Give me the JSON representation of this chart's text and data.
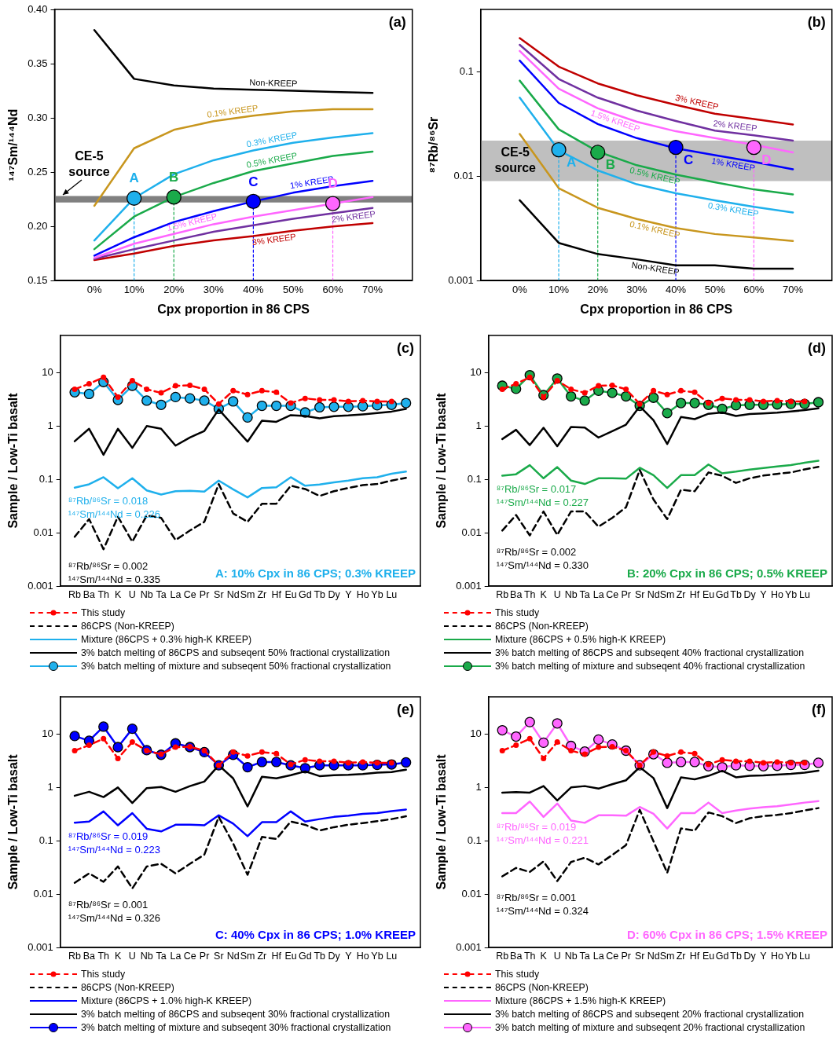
{
  "chart_data": [
    {
      "type": "line",
      "title": "(a)",
      "xlabel": "Cpx proportion in 86 CPS",
      "ylabel": "¹⁴⁷Sm/¹⁴⁴Nd",
      "x": [
        0,
        10,
        20,
        30,
        40,
        50,
        60,
        70
      ],
      "xlim": [
        -10,
        80
      ],
      "xticks": [
        {
          "value": 0,
          "label": "0%"
        },
        {
          "value": 10,
          "label": "10%"
        },
        {
          "value": 20,
          "label": "20%"
        },
        {
          "value": 30,
          "label": "30%"
        },
        {
          "value": 40,
          "label": "40%"
        },
        {
          "value": 50,
          "label": "50%"
        },
        {
          "value": 60,
          "label": "60%"
        },
        {
          "value": 70,
          "label": "70%"
        }
      ],
      "ylim": [
        0.15,
        0.4
      ],
      "yticks": [
        {
          "value": 0.15,
          "label": "0.15"
        },
        {
          "value": 0.2,
          "label": "0.20"
        },
        {
          "value": 0.25,
          "label": "0.25"
        },
        {
          "value": 0.3,
          "label": "0.30"
        },
        {
          "value": 0.35,
          "label": "0.35"
        },
        {
          "value": 0.4,
          "label": "0.40"
        }
      ],
      "bands": [
        {
          "axis": "y",
          "from": 0.222,
          "to": 0.228,
          "label": "CE-5 source",
          "color": "#808080"
        }
      ],
      "annotations": [
        {
          "text": "A",
          "x": 10,
          "y": 0.226
        },
        {
          "text": "B",
          "x": 20,
          "y": 0.227
        },
        {
          "text": "C",
          "x": 40,
          "y": 0.223
        },
        {
          "text": "D",
          "x": 60,
          "y": 0.221
        }
      ],
      "series": [
        {
          "name": "Non-KREEP",
          "color": "#000000",
          "values": [
            0.381,
            0.336,
            0.33,
            0.327,
            0.326,
            0.325,
            0.324,
            0.323
          ]
        },
        {
          "name": "0.1% KREEP",
          "color": "#c8961e",
          "values": [
            0.219,
            0.272,
            0.289,
            0.297,
            0.302,
            0.306,
            0.308,
            0.308
          ]
        },
        {
          "name": "0.3% KREEP",
          "color": "#1fb0ec",
          "values": [
            0.187,
            0.226,
            0.248,
            0.261,
            0.27,
            0.277,
            0.282,
            0.286
          ]
        },
        {
          "name": "0.5% KREEP",
          "color": "#1aaa4a",
          "values": [
            0.179,
            0.209,
            0.227,
            0.24,
            0.251,
            0.258,
            0.265,
            0.269
          ]
        },
        {
          "name": "1% KREEP",
          "color": "#0000ff",
          "values": [
            0.173,
            0.19,
            0.204,
            0.214,
            0.223,
            0.231,
            0.237,
            0.242
          ]
        },
        {
          "name": "1.5% KREEP",
          "color": "#ff66ff",
          "values": [
            0.171,
            0.184,
            0.193,
            0.202,
            0.209,
            0.215,
            0.221,
            0.227
          ]
        },
        {
          "name": "2% KREEP",
          "color": "#7030a0",
          "values": [
            0.17,
            0.179,
            0.187,
            0.195,
            0.201,
            0.207,
            0.212,
            0.217
          ]
        },
        {
          "name": "3% KREEP",
          "color": "#c00000",
          "values": [
            0.169,
            0.175,
            0.182,
            0.187,
            0.191,
            0.196,
            0.2,
            0.203
          ]
        },
        {
          "type": "scatter",
          "x": [
            10,
            20,
            40,
            60
          ],
          "values": [
            0.226,
            0.227,
            0.223,
            0.221
          ],
          "colors": [
            "#1fb0ec",
            "#1aaa4a",
            "#0000ff",
            "#ff66ff"
          ]
        },
        {
          "color": "#1fb0ec",
          "x": [
            10,
            10
          ],
          "values": [
            0.15,
            0.226
          ],
          "line_style": "dashed"
        },
        {
          "color": "#1aaa4a",
          "x": [
            20,
            20
          ],
          "values": [
            0.15,
            0.227
          ],
          "line_style": "dashed"
        },
        {
          "color": "#0000ff",
          "x": [
            40,
            40
          ],
          "values": [
            0.15,
            0.223
          ],
          "line_style": "dashed"
        },
        {
          "color": "#ff66ff",
          "x": [
            60,
            60
          ],
          "values": [
            0.15,
            0.221
          ],
          "line_style": "dashed"
        }
      ]
    },
    {
      "type": "line",
      "title": "(b)",
      "xlabel": "Cpx proportion in 86 CPS",
      "ylabel": "⁸⁷Rb/⁸⁶Sr",
      "log": true,
      "x": [
        0,
        10,
        20,
        30,
        40,
        50,
        60,
        70
      ],
      "xlim": [
        -10,
        80
      ],
      "xticks": [
        {
          "value": 0,
          "label": "0%"
        },
        {
          "value": 10,
          "label": "10%"
        },
        {
          "value": 20,
          "label": "20%"
        },
        {
          "value": 30,
          "label": "30%"
        },
        {
          "value": 40,
          "label": "40%"
        },
        {
          "value": 50,
          "label": "50%"
        },
        {
          "value": 60,
          "label": "60%"
        },
        {
          "value": 70,
          "label": "70%"
        }
      ],
      "ylim": [
        0.001,
        0.4
      ],
      "yticks": [
        0.001,
        0.01,
        0.1
      ],
      "bands": [
        {
          "axis": "y",
          "from": 0.009,
          "to": 0.022,
          "label": "CE-5 source",
          "color": "#bfbfbf"
        }
      ],
      "annotations": [
        {
          "text": "A",
          "x": 10,
          "y": 0.018
        },
        {
          "text": "B",
          "x": 20,
          "y": 0.017
        },
        {
          "text": "C",
          "x": 40,
          "y": 0.019
        },
        {
          "text": "D",
          "x": 60,
          "y": 0.019
        }
      ],
      "series": [
        {
          "name": "Non-KREEP",
          "color": "#000000",
          "values": [
            0.0059,
            0.0023,
            0.0018,
            0.0016,
            0.0014,
            0.0014,
            0.0013,
            0.0013
          ]
        },
        {
          "name": "0.1% KREEP",
          "color": "#c8961e",
          "values": [
            0.0255,
            0.0077,
            0.005,
            0.0039,
            0.0032,
            0.0028,
            0.0026,
            0.0024
          ]
        },
        {
          "name": "0.3% KREEP",
          "color": "#1fb0ec",
          "values": [
            0.057,
            0.0178,
            0.0114,
            0.0084,
            0.0069,
            0.0059,
            0.0051,
            0.0045
          ]
        },
        {
          "name": "0.5% KREEP",
          "color": "#1aaa4a",
          "values": [
            0.083,
            0.0283,
            0.0173,
            0.0128,
            0.0104,
            0.0088,
            0.0075,
            0.0067
          ]
        },
        {
          "name": "1% KREEP",
          "color": "#0000ff",
          "values": [
            0.129,
            0.0507,
            0.0318,
            0.0233,
            0.0186,
            0.016,
            0.0138,
            0.0117
          ]
        },
        {
          "name": "1.5% KREEP",
          "color": "#ff66ff",
          "values": [
            0.16,
            0.0695,
            0.045,
            0.0334,
            0.0271,
            0.0233,
            0.0201,
            0.017
          ]
        },
        {
          "name": "2% KREEP",
          "color": "#7030a0",
          "values": [
            0.183,
            0.086,
            0.057,
            0.0428,
            0.034,
            0.0275,
            0.0248,
            0.022
          ]
        },
        {
          "name": "3% KREEP",
          "color": "#c00000",
          "values": [
            0.212,
            0.113,
            0.078,
            0.06,
            0.0486,
            0.04,
            0.0355,
            0.0314
          ]
        },
        {
          "type": "scatter",
          "x": [
            10,
            20,
            40,
            60
          ],
          "values": [
            0.018,
            0.017,
            0.019,
            0.019
          ],
          "colors": [
            "#1fb0ec",
            "#1aaa4a",
            "#0000ff",
            "#ff66ff"
          ]
        },
        {
          "color": "#1fb0ec",
          "x": [
            10,
            10
          ],
          "values": [
            0.001,
            0.018
          ],
          "line_style": "dashed"
        },
        {
          "color": "#1aaa4a",
          "x": [
            20,
            20
          ],
          "values": [
            0.001,
            0.017
          ],
          "line_style": "dashed"
        },
        {
          "color": "#0000ff",
          "x": [
            40,
            40
          ],
          "values": [
            0.001,
            0.019
          ],
          "line_style": "dashed"
        },
        {
          "color": "#ff66ff",
          "x": [
            60,
            60
          ],
          "values": [
            0.001,
            0.019
          ],
          "line_style": "dashed"
        }
      ]
    },
    {
      "type": "line",
      "title": "(c)",
      "ylabel": "Sample / Low-Ti basalt",
      "log": true,
      "legend": "bottom",
      "categories": [
        "Rb",
        "Ba",
        "Th",
        "K",
        "U",
        "Nb",
        "Ta",
        "La",
        "Ce",
        "Pr",
        "Sr",
        "Nd",
        "Sm",
        "Zr",
        "Hf",
        "Eu",
        "Gd",
        "Tb",
        "Dy",
        "Y",
        "Ho",
        "Yb",
        "Lu",
        null
      ],
      "ylim": [
        0.001,
        50
      ],
      "yticks": [
        0.001,
        0.01,
        0.1,
        1,
        10
      ],
      "annotations": [
        "⁸⁷Rb/⁸⁶Sr = 0.018",
        "¹⁴⁷Sm/¹⁴⁴Nd = 0.226",
        "⁸⁷Rb/⁸⁶Sr = 0.002",
        "¹⁴⁷Sm/¹⁴⁴Nd = 0.335",
        "A: 10% Cpx in 86 CPS; 0.3% KREEP"
      ],
      "series": [
        {
          "name": "This study",
          "color": "#ff0000",
          "line_style": "dashed",
          "marker": "circle",
          "values": [
            4.9,
            6.2,
            8.2,
            3.5,
            7.1,
            4.9,
            4.2,
            5.7,
            5.8,
            4.9,
            2.6,
            4.6,
            3.9,
            4.6,
            4.3,
            2.7,
            3.3,
            3.1,
            3.1,
            2.9,
            3.0,
            2.9,
            2.9,
            null
          ]
        },
        {
          "name": "86CPS (Non-KREEP)",
          "color": "#000000",
          "line_style": "dashed",
          "values": [
            0.0084,
            0.018,
            0.0049,
            0.02,
            0.0068,
            0.021,
            0.019,
            0.0073,
            0.011,
            0.016,
            0.082,
            0.023,
            0.016,
            0.035,
            0.035,
            0.076,
            0.066,
            0.049,
            0.06,
            0.069,
            0.078,
            0.082,
            0.095,
            0.107
          ]
        },
        {
          "name": "Mixture (86CPS + 0.3% high-K KREEP)",
          "color": "#1fb0ec",
          "values": [
            0.07,
            0.081,
            0.11,
            0.068,
            0.105,
            0.062,
            0.052,
            0.06,
            0.061,
            0.059,
            0.095,
            0.065,
            0.046,
            0.069,
            0.071,
            0.11,
            0.076,
            0.08,
            0.088,
            0.095,
            0.105,
            0.11,
            0.128,
            0.14
          ]
        },
        {
          "name": "3% batch melting of 86CPS and subseqent 50% fractional crystallization",
          "color": "#000000",
          "values": [
            0.52,
            0.89,
            0.29,
            0.89,
            0.39,
            1.0,
            0.89,
            0.43,
            0.61,
            0.81,
            2.05,
            1.02,
            0.51,
            1.26,
            1.2,
            1.6,
            1.55,
            1.4,
            1.53,
            1.58,
            1.66,
            1.75,
            1.87,
            2.1
          ]
        },
        {
          "name": "3% batch melting of mixture and subseqent 50% fractional crystallization",
          "color": "#1fb0ec",
          "marker": "circle",
          "values": [
            4.3,
            4.0,
            6.7,
            3.1,
            5.7,
            3.0,
            2.5,
            3.5,
            3.3,
            3.0,
            2.1,
            2.9,
            1.45,
            2.4,
            2.4,
            2.4,
            1.8,
            2.25,
            2.3,
            2.3,
            2.35,
            2.45,
            2.5,
            2.7
          ]
        }
      ]
    },
    {
      "type": "line",
      "title": "(d)",
      "ylabel": "Sample / Low-Ti basalt",
      "log": true,
      "legend": "bottom",
      "categories": [
        "Rb",
        "Ba",
        "Th",
        "K",
        "U",
        "Nb",
        "Ta",
        "La",
        "Ce",
        "Pr",
        "Sr",
        "Nd",
        "Sm",
        "Zr",
        "Hf",
        "Eu",
        "Gd",
        "Tb",
        "Dy",
        "Y",
        "Ho",
        "Yb",
        "Lu",
        null
      ],
      "ylim": [
        0.001,
        50
      ],
      "yticks": [
        0.001,
        0.01,
        0.1,
        1,
        10
      ],
      "annotations": [
        "⁸⁷Rb/⁸⁶Sr = 0.017",
        "¹⁴⁷Sm/¹⁴⁴Nd = 0.227",
        "⁸⁷Rb/⁸⁶Sr = 0.002",
        "¹⁴⁷Sm/¹⁴⁴Nd = 0.330",
        "B: 20% Cpx in 86 CPS; 0.5% KREEP"
      ],
      "series": [
        {
          "name": "This study",
          "color": "#ff0000",
          "line_style": "dashed",
          "marker": "circle",
          "values": [
            4.9,
            6.2,
            8.2,
            3.5,
            7.1,
            4.9,
            4.2,
            5.7,
            5.8,
            4.9,
            2.6,
            4.6,
            3.9,
            4.6,
            4.3,
            2.7,
            3.3,
            3.1,
            3.1,
            2.9,
            3.0,
            2.9,
            2.9,
            null
          ]
        },
        {
          "name": "86CPS (Non-KREEP)",
          "color": "#000000",
          "line_style": "dashed",
          "values": [
            0.011,
            0.0215,
            0.0089,
            0.025,
            0.0091,
            0.025,
            0.025,
            0.013,
            0.019,
            0.03,
            0.15,
            0.042,
            0.018,
            0.064,
            0.06,
            0.135,
            0.117,
            0.086,
            0.105,
            0.118,
            0.127,
            0.135,
            0.154,
            0.172
          ]
        },
        {
          "name": "Mixture (86CPS + 0.5% high-K KREEP)",
          "color": "#1aaa4a",
          "values": [
            0.117,
            0.125,
            0.185,
            0.105,
            0.17,
            0.095,
            0.082,
            0.105,
            0.105,
            0.103,
            0.165,
            0.12,
            0.069,
            0.12,
            0.12,
            0.19,
            0.13,
            0.14,
            0.153,
            0.163,
            0.175,
            0.185,
            0.205,
            0.223
          ]
        },
        {
          "name": "3% batch melting of 86CPS and subseqent 40% fractional crystallization",
          "color": "#000000",
          "values": [
            0.57,
            0.85,
            0.44,
            0.93,
            0.42,
            0.96,
            0.94,
            0.61,
            0.8,
            1.06,
            2.35,
            1.29,
            0.46,
            1.48,
            1.35,
            1.7,
            1.8,
            1.55,
            1.68,
            1.72,
            1.78,
            1.88,
            1.99,
            2.15
          ]
        },
        {
          "name": "3% batch melting of mixture and subseqent 40% fractional crystallization",
          "color": "#1aaa4a",
          "marker": "circle",
          "values": [
            5.7,
            5.0,
            9.0,
            3.8,
            7.8,
            3.6,
            3.0,
            4.6,
            4.2,
            3.6,
            2.4,
            3.4,
            1.75,
            2.7,
            2.7,
            2.5,
            2.1,
            2.45,
            2.5,
            2.5,
            2.55,
            2.6,
            2.6,
            2.8
          ]
        }
      ]
    },
    {
      "type": "line",
      "title": "(e)",
      "ylabel": "Sample / Low-Ti basalt",
      "log": true,
      "legend": "bottom",
      "categories": [
        "Rb",
        "Ba",
        "Th",
        "K",
        "U",
        "Nb",
        "Ta",
        "La",
        "Ce",
        "Pr",
        "Sr",
        "Nd",
        "Sm",
        "Zr",
        "Hf",
        "Eu",
        "Gd",
        "Tb",
        "Dy",
        "Y",
        "Ho",
        "Yb",
        "Lu",
        null
      ],
      "ylim": [
        0.001,
        50
      ],
      "yticks": [
        0.001,
        0.01,
        0.1,
        1,
        10
      ],
      "annotations": [
        "⁸⁷Rb/⁸⁶Sr = 0.019",
        "¹⁴⁷Sm/¹⁴⁴Nd = 0.223",
        "⁸⁷Rb/⁸⁶Sr = 0.001",
        "¹⁴⁷Sm/¹⁴⁴Nd = 0.326",
        "C: 40% Cpx in 86 CPS; 1.0% KREEP"
      ],
      "series": [
        {
          "name": "This study",
          "color": "#ff0000",
          "line_style": "dashed",
          "marker": "circle",
          "values": [
            4.9,
            6.2,
            8.2,
            3.5,
            7.1,
            4.9,
            4.2,
            5.7,
            5.8,
            4.9,
            2.6,
            4.6,
            3.9,
            4.6,
            4.3,
            2.7,
            3.3,
            3.1,
            3.1,
            2.9,
            3.0,
            2.9,
            2.9,
            null
          ]
        },
        {
          "name": "86CPS (Non-KREEP)",
          "color": "#000000",
          "line_style": "dashed",
          "values": [
            0.0163,
            0.0245,
            0.017,
            0.033,
            0.0128,
            0.033,
            0.037,
            0.0245,
            0.037,
            0.055,
            0.28,
            0.089,
            0.023,
            0.118,
            0.108,
            0.23,
            0.199,
            0.156,
            0.18,
            0.2,
            0.215,
            0.233,
            0.255,
            0.288
          ]
        },
        {
          "name": "Mixture (86CPS + 1.0% high-K KREEP)",
          "color": "#0000ff",
          "values": [
            0.218,
            0.23,
            0.355,
            0.195,
            0.33,
            0.168,
            0.15,
            0.2,
            0.2,
            0.195,
            0.3,
            0.21,
            0.122,
            0.223,
            0.223,
            0.355,
            0.23,
            0.255,
            0.28,
            0.295,
            0.32,
            0.33,
            0.36,
            0.385
          ]
        },
        {
          "name": "3% batch melting of 86CPS and subseqent 30% fractional crystallization",
          "color": "#000000",
          "values": [
            0.7,
            0.83,
            0.66,
            1.0,
            0.51,
            0.97,
            1.02,
            0.83,
            1.06,
            1.29,
            2.6,
            1.48,
            0.44,
            1.59,
            1.48,
            1.7,
            2.0,
            1.63,
            1.7,
            1.72,
            1.78,
            1.9,
            1.95,
            2.15
          ]
        },
        {
          "name": "3% batch melting of mixture and subseqent 30% fractional crystallization",
          "color": "#0000ff",
          "marker": "circle",
          "values": [
            9.2,
            7.5,
            13.8,
            5.7,
            12.6,
            5.0,
            4.1,
            6.7,
            5.7,
            4.6,
            2.6,
            4.1,
            2.4,
            3.0,
            3.0,
            2.6,
            2.3,
            2.6,
            2.6,
            2.6,
            2.6,
            2.65,
            2.7,
            2.95
          ]
        }
      ]
    },
    {
      "type": "line",
      "title": "(f)",
      "ylabel": "Sample / Low-Ti basalt",
      "log": true,
      "legend": "bottom",
      "categories": [
        "Rb",
        "Ba",
        "Th",
        "K",
        "U",
        "Nb",
        "Ta",
        "La",
        "Ce",
        "Pr",
        "Sr",
        "Nd",
        "Sm",
        "Zr",
        "Hf",
        "Eu",
        "Gd",
        "Tb",
        "Dy",
        "Y",
        "Ho",
        "Yb",
        "Lu",
        null
      ],
      "ylim": [
        0.001,
        50
      ],
      "yticks": [
        0.001,
        0.01,
        0.1,
        1,
        10
      ],
      "annotations": [
        "⁸⁷Rb/⁸⁶Sr = 0.019",
        "¹⁴⁷Sm/¹⁴⁴Nd = 0.221",
        "⁸⁷Rb/⁸⁶Sr = 0.001",
        "¹⁴⁷Sm/¹⁴⁴Nd = 0.324",
        "D: 60% Cpx in 86 CPS; 1.5% KREEP"
      ],
      "series": [
        {
          "name": "This study",
          "color": "#ff0000",
          "line_style": "dashed",
          "marker": "circle",
          "values": [
            4.9,
            6.2,
            8.2,
            3.5,
            7.1,
            4.9,
            4.2,
            5.7,
            5.8,
            4.9,
            2.6,
            4.6,
            3.9,
            4.6,
            4.3,
            2.7,
            3.3,
            3.1,
            3.1,
            2.9,
            3.0,
            2.9,
            2.9,
            null
          ]
        },
        {
          "name": "86CPS (Non-KREEP)",
          "color": "#000000",
          "line_style": "dashed",
          "values": [
            0.0215,
            0.031,
            0.026,
            0.041,
            0.0176,
            0.04,
            0.048,
            0.036,
            0.054,
            0.083,
            0.38,
            0.098,
            0.025,
            0.17,
            0.155,
            0.34,
            0.29,
            0.215,
            0.265,
            0.29,
            0.305,
            0.33,
            0.37,
            0.41
          ]
        },
        {
          "name": "Mixture (86CPS + 1.5% high-K KREEP)",
          "color": "#ff66ff",
          "values": [
            0.33,
            0.33,
            0.545,
            0.28,
            0.5,
            0.24,
            0.217,
            0.3,
            0.3,
            0.295,
            0.43,
            0.32,
            0.17,
            0.33,
            0.33,
            0.52,
            0.33,
            0.37,
            0.4,
            0.425,
            0.445,
            0.48,
            0.52,
            0.555
          ]
        },
        {
          "name": "3% batch melting of 86CPS and subseqent 20% fractional crystallization",
          "color": "#000000",
          "values": [
            0.8,
            0.82,
            0.8,
            1.06,
            0.57,
            1.0,
            1.06,
            0.95,
            1.15,
            1.36,
            2.4,
            1.5,
            0.41,
            1.55,
            1.42,
            1.65,
            2.05,
            1.55,
            1.65,
            1.68,
            1.74,
            1.8,
            1.9,
            2.07
          ]
        },
        {
          "name": "3% batch melting of mixture and subseqent 20% fractional crystallization",
          "color": "#ff66ff",
          "marker": "circle",
          "values": [
            11.8,
            9.0,
            16.8,
            6.9,
            15.9,
            6.0,
            4.7,
            7.9,
            6.4,
            4.9,
            2.6,
            4.2,
            2.9,
            3.0,
            3.0,
            2.5,
            2.4,
            2.6,
            2.55,
            2.5,
            2.55,
            2.65,
            2.65,
            2.9
          ]
        }
      ]
    }
  ]
}
